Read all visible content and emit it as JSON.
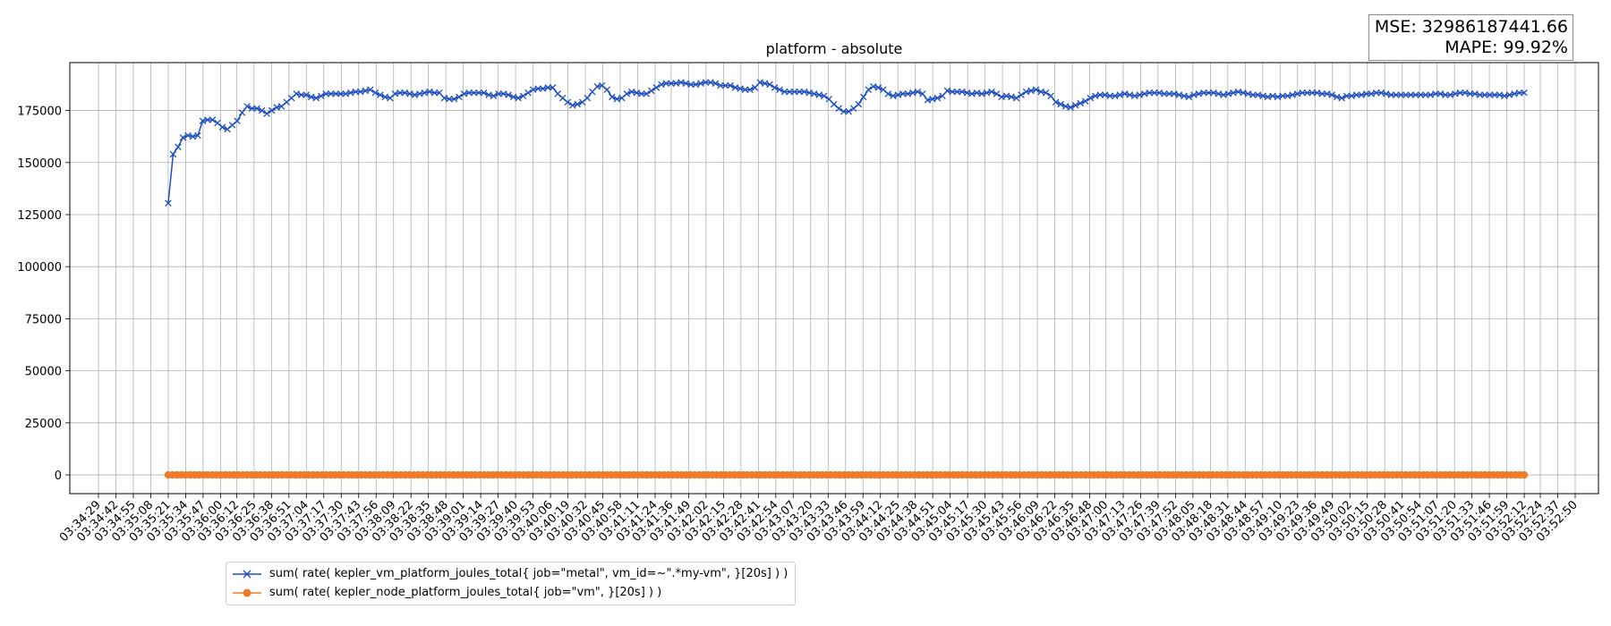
{
  "stats": {
    "mse": "MSE: 32986187441.66",
    "mape": "MAPE: 99.92%"
  },
  "chart_data": {
    "type": "line",
    "title": "platform - absolute",
    "xlabel": "",
    "ylabel": "",
    "ylim": [
      -9000,
      198000
    ],
    "yticks": [
      0,
      25000,
      50000,
      75000,
      100000,
      125000,
      150000,
      175000
    ],
    "ytick_labels": [
      "0",
      "25000",
      "50000",
      "75000",
      "100000",
      "125000",
      "150000",
      "175000"
    ],
    "grid": true,
    "legend_position": "lower-left (below plot)",
    "x_tick_labels": [
      "03:34:29",
      "03:34:42",
      "03:34:55",
      "03:35:08",
      "03:35:21",
      "03:35:34",
      "03:35:47",
      "03:36:00",
      "03:36:12",
      "03:36:25",
      "03:36:38",
      "03:36:51",
      "03:37:04",
      "03:37:17",
      "03:37:30",
      "03:37:43",
      "03:37:56",
      "03:38:09",
      "03:38:22",
      "03:38:35",
      "03:38:48",
      "03:39:01",
      "03:39:14",
      "03:39:27",
      "03:39:40",
      "03:39:53",
      "03:40:06",
      "03:40:19",
      "03:40:32",
      "03:40:45",
      "03:40:58",
      "03:41:11",
      "03:41:24",
      "03:41:36",
      "03:41:49",
      "03:42:02",
      "03:42:15",
      "03:42:28",
      "03:42:41",
      "03:42:54",
      "03:43:07",
      "03:43:20",
      "03:43:33",
      "03:43:46",
      "03:43:59",
      "03:44:12",
      "03:44:25",
      "03:44:38",
      "03:44:51",
      "03:45:04",
      "03:45:17",
      "03:45:30",
      "03:45:43",
      "03:45:56",
      "03:46:09",
      "03:46:22",
      "03:46:35",
      "03:46:48",
      "03:47:00",
      "03:47:13",
      "03:47:26",
      "03:47:39",
      "03:47:52",
      "03:48:05",
      "03:48:18",
      "03:48:31",
      "03:48:44",
      "03:48:57",
      "03:49:10",
      "03:49:23",
      "03:49:36",
      "03:49:49",
      "03:50:02",
      "03:50:15",
      "03:50:28",
      "03:50:41",
      "03:50:54",
      "03:51:07",
      "03:51:20",
      "03:51:33",
      "03:51:46",
      "03:51:59",
      "03:52:12",
      "03:52:24",
      "03:52:37",
      "03:52:50"
    ],
    "series": [
      {
        "name": "sum( rate( kepler_vm_platform_joules_total{ job=\"metal\", vm_id=~\".*my-vm\", }[20s] ) )",
        "color": "#1f4fbf",
        "marker": "x",
        "x_start": "03:35:21",
        "x_end": "03:52:12",
        "values": [
          130500,
          154000,
          157500,
          162000,
          163000,
          162500,
          163000,
          170000,
          170500,
          170500,
          169000,
          167000,
          166000,
          168000,
          170000,
          174000,
          177000,
          176000,
          176000,
          175000,
          173500,
          175000,
          176500,
          177000,
          179000,
          181000,
          183000,
          182500,
          182500,
          181500,
          181000,
          182000,
          183000,
          183000,
          183000,
          183000,
          183000,
          183500,
          184000,
          184000,
          184500,
          185000,
          183500,
          182500,
          181500,
          181000,
          183000,
          183500,
          183500,
          183000,
          182500,
          183000,
          183500,
          184000,
          183500,
          183500,
          181000,
          180500,
          180500,
          181500,
          183000,
          183500,
          183500,
          183500,
          183500,
          182500,
          182000,
          183000,
          183000,
          182500,
          181500,
          181000,
          182000,
          183500,
          185000,
          185500,
          185500,
          186000,
          186000,
          183000,
          181000,
          179000,
          177500,
          178000,
          179000,
          181000,
          184000,
          186500,
          187000,
          185000,
          181500,
          180500,
          181000,
          183000,
          184000,
          183500,
          183000,
          183000,
          184500,
          186000,
          187500,
          188000,
          188000,
          188000,
          188500,
          188000,
          187500,
          187500,
          188000,
          188500,
          188500,
          188000,
          187000,
          187000,
          187000,
          186000,
          185500,
          185000,
          185000,
          186000,
          188500,
          188000,
          187500,
          186000,
          185000,
          184000,
          184000,
          184000,
          184000,
          184000,
          183500,
          183000,
          182500,
          182000,
          180500,
          178000,
          176000,
          174500,
          174500,
          176000,
          178000,
          181500,
          185000,
          186500,
          186000,
          185000,
          183000,
          182000,
          182500,
          183000,
          183000,
          183500,
          184000,
          183000,
          180000,
          180500,
          181000,
          182000,
          184500,
          184000,
          184000,
          184000,
          183500,
          183000,
          183500,
          183000,
          183500,
          184000,
          183000,
          181500,
          182000,
          181500,
          181000,
          182500,
          184000,
          184500,
          185000,
          184000,
          183500,
          182000,
          179000,
          178000,
          177000,
          176500,
          177500,
          178500,
          179500,
          181000,
          182000,
          182500,
          182500,
          182000,
          182000,
          182500,
          183000,
          182500,
          182000,
          182500,
          183000,
          183500,
          183500,
          183500,
          183000,
          183000,
          183000,
          182500,
          182000,
          181500,
          182500,
          183000,
          183500,
          183500,
          183500,
          183000,
          182500,
          183000,
          183500,
          184000,
          183500,
          183000,
          182500,
          182500,
          182000,
          181500,
          182000,
          181500,
          182000,
          182000,
          182500,
          183000,
          183500,
          183500,
          183500,
          183500,
          183000,
          183000,
          182500,
          181500,
          181000,
          182000,
          182000,
          182500,
          182500,
          183000,
          183000,
          183500,
          183500,
          183000,
          182500,
          182500,
          182500,
          182500,
          182500,
          182500,
          182500,
          182500,
          182500,
          183000,
          183000,
          182500,
          182500,
          183000,
          183500,
          183500,
          183000,
          183000,
          182500,
          182500,
          182500,
          182500,
          182500,
          182000,
          182500,
          183000,
          183500,
          183500
        ]
      },
      {
        "name": "sum( rate( kepler_node_platform_joules_total{ job=\"vm\", }[20s] ) )",
        "color": "#f07a2a",
        "marker": "o",
        "x_start": "03:35:21",
        "x_end": "03:52:12",
        "values": [
          0,
          0,
          0,
          0,
          0,
          0,
          0,
          0,
          0,
          0,
          0,
          0,
          0,
          0,
          0,
          0,
          0,
          0,
          0,
          0,
          0,
          0,
          0,
          0,
          0,
          0,
          0,
          0,
          0,
          0,
          0,
          0,
          0,
          0,
          0,
          0,
          0,
          0,
          0,
          0,
          0,
          0,
          0,
          0,
          0,
          0,
          0,
          0,
          0,
          0,
          0,
          0,
          0,
          0,
          0,
          0,
          0,
          0,
          0,
          0,
          0,
          0,
          0,
          0,
          0,
          0,
          0,
          0,
          0,
          0,
          0,
          0,
          0,
          0,
          0,
          0,
          0,
          0,
          0,
          0,
          0,
          0,
          0,
          0,
          0,
          0,
          0,
          0,
          0,
          0,
          0,
          0,
          0,
          0,
          0,
          0,
          0,
          0,
          0,
          0,
          0,
          0,
          0,
          0,
          0,
          0,
          0,
          0,
          0,
          0,
          0,
          0,
          0,
          0,
          0,
          0,
          0,
          0,
          0,
          0,
          0,
          0,
          0,
          0,
          0,
          0,
          0,
          0,
          0,
          0,
          0,
          0,
          0,
          0,
          0,
          0,
          0,
          0,
          0,
          0,
          0,
          0,
          0,
          0,
          0,
          0,
          0,
          0,
          0,
          0,
          0,
          0,
          0,
          0,
          0,
          0,
          0,
          0,
          0,
          0,
          0,
          0,
          0,
          0,
          0,
          0,
          0,
          0,
          0,
          0,
          0,
          0,
          0,
          0,
          0,
          0,
          0,
          0,
          0,
          0,
          0,
          0,
          0,
          0,
          0,
          0,
          0,
          0,
          0,
          0,
          0,
          0,
          0,
          0,
          0,
          0,
          0,
          0,
          0,
          0,
          0,
          0,
          0,
          0,
          0,
          0,
          0,
          0,
          0,
          0,
          0,
          0,
          0,
          0,
          0,
          0,
          0,
          0,
          0,
          0,
          0,
          0,
          0,
          0,
          0,
          0,
          0,
          0,
          0,
          0,
          0,
          0,
          0,
          0,
          0,
          0,
          0,
          0,
          0,
          0,
          0,
          0,
          0,
          0,
          0,
          0,
          0,
          0,
          0,
          0,
          0,
          0,
          0,
          0,
          0,
          0,
          0,
          0,
          0,
          0,
          0,
          0,
          0,
          0,
          0,
          0,
          0,
          0,
          0,
          0,
          0,
          0,
          0,
          0,
          0,
          0,
          0,
          0,
          0,
          0,
          0,
          0,
          0,
          0,
          0,
          0,
          0,
          0,
          0,
          0,
          0,
          0,
          0,
          0,
          0,
          0,
          0,
          0,
          0,
          0,
          0,
          0,
          0,
          0,
          0,
          0,
          0,
          0,
          0,
          0
        ]
      }
    ]
  }
}
